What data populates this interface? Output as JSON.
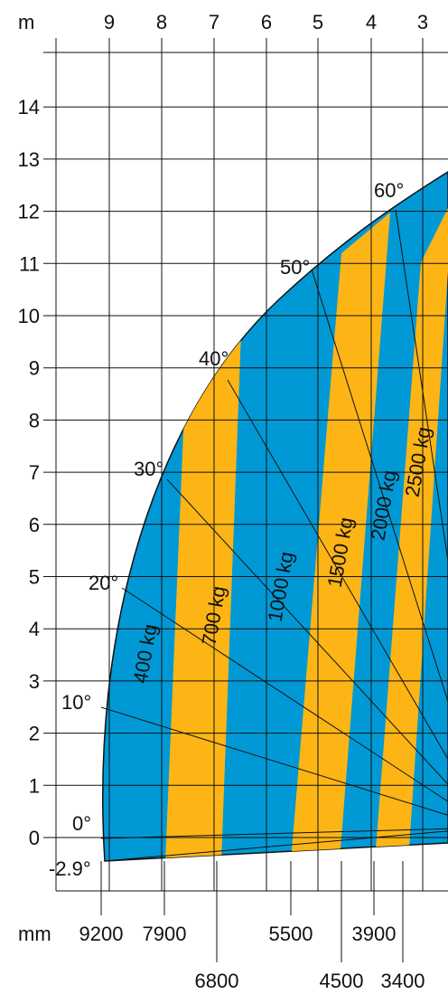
{
  "chart_data": {
    "type": "diagram",
    "axes": {
      "x_unit": "m",
      "x_ticks": [
        "9",
        "8",
        "7",
        "6",
        "5",
        "4",
        "3"
      ],
      "y_ticks": [
        "0",
        "1",
        "2",
        "3",
        "4",
        "5",
        "6",
        "7",
        "8",
        "9",
        "10",
        "11",
        "12",
        "13",
        "14"
      ],
      "x_bottom_unit": "mm",
      "x_bottom_ticks": [
        "9200",
        "7900",
        "6800",
        "5500",
        "4500",
        "3900",
        "3400"
      ]
    },
    "angles": [
      "-2.9°",
      "0°",
      "10°",
      "20°",
      "30°",
      "40°",
      "50°",
      "60°"
    ],
    "load_zones": [
      "400 kg",
      "700 kg",
      "1000 kg",
      "1500 kg",
      "2000 kg",
      "2500 kg"
    ],
    "colors": {
      "blue": "#0099D6",
      "yellow": "#FDB515",
      "grid": "#111111"
    }
  }
}
